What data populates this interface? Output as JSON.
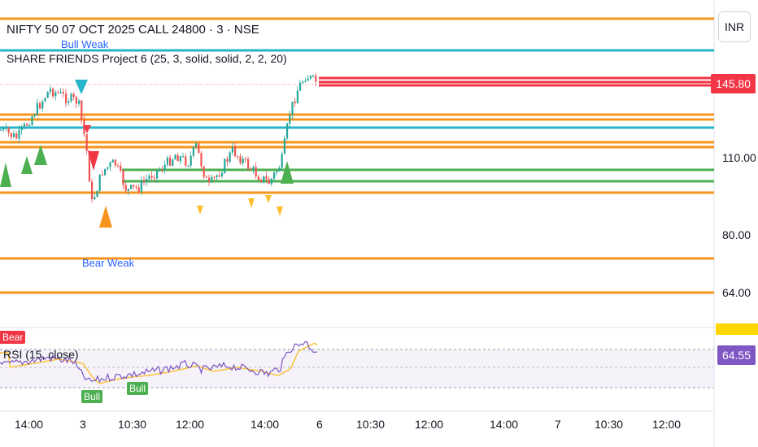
{
  "symbol": {
    "title": "NIFTY 50 07 OCT 2025 CALL 24800 · 3 · NSE",
    "indicator_label": "SHARE FRIENDS Project 6 (25, 3, solid, solid, 2, 2, 20)"
  },
  "signals": {
    "bull_weak": "Bull Weak",
    "bear_weak": "Bear Weak",
    "rsi_bull_1": "Bull",
    "rsi_bull_2": "Bull",
    "bear": "Bear"
  },
  "currency_button": "INR",
  "price_axis": {
    "current_price": "145.80",
    "current_price_color": "#f23645",
    "ticks": [
      "110.00",
      "80.00",
      "64.00"
    ]
  },
  "rsi": {
    "label": "RSI (15, close)",
    "value": "64.55",
    "value_color": "#7e57c2",
    "line_color": "#7e57c2",
    "ma_color": "#fbc02d"
  },
  "time_axis": {
    "labels": [
      "14:00",
      "3",
      "10:30",
      "12:00",
      "14:00",
      "6",
      "10:30",
      "12:00",
      "14:00",
      "7",
      "10:30",
      "12:00"
    ]
  },
  "colors": {
    "orange": "#f7941d",
    "cyan": "#26b5c9",
    "green": "#4caf50",
    "red": "#f23645",
    "up_candle": "#26a69a",
    "down_candle": "#ef5350"
  }
}
